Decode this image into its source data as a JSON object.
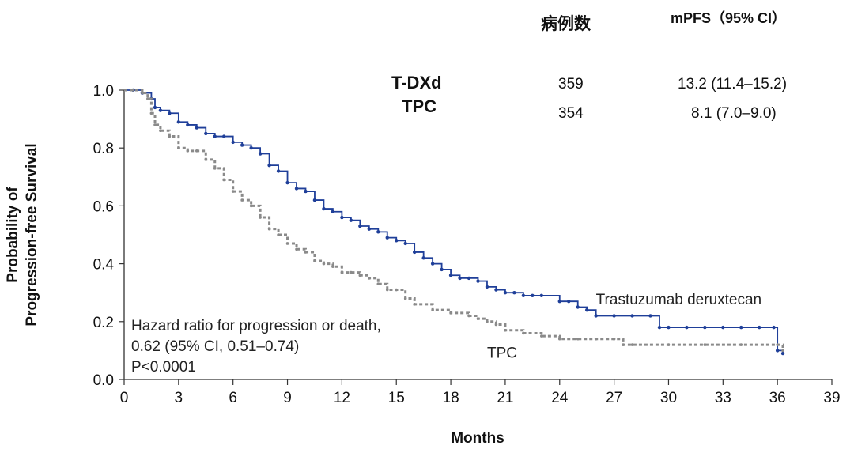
{
  "chart_data": {
    "type": "line",
    "title": "",
    "xlabel": "Months",
    "ylabel_line1": "Probability of",
    "ylabel_line2": "Progression-free Survival",
    "xlim": [
      0,
      39
    ],
    "ylim": [
      0,
      1.0
    ],
    "x_ticks": [
      "0",
      "3",
      "6",
      "9",
      "12",
      "15",
      "18",
      "21",
      "24",
      "27",
      "30",
      "33",
      "36",
      "39"
    ],
    "x_tick_values": [
      0,
      3,
      6,
      9,
      12,
      15,
      18,
      21,
      24,
      27,
      30,
      33,
      36,
      39
    ],
    "y_ticks": [
      "0.0",
      "0.2",
      "0.4",
      "0.6",
      "0.8",
      "1.0"
    ],
    "y_tick_values": [
      0,
      0.2,
      0.4,
      0.6,
      0.8,
      1.0
    ],
    "grid": false,
    "table": {
      "header_cases": "病例数",
      "header_mpfs": "mPFS（95% CI）",
      "rows": [
        {
          "arm": "T-DXd",
          "cases": "359",
          "mpfs": "13.2 (11.4–15.2)"
        },
        {
          "arm": "TPC",
          "cases": "354",
          "mpfs": "8.1 (7.0–9.0)"
        }
      ]
    },
    "annotation": {
      "line1": "Hazard ratio for progression or death,",
      "line2": "0.62 (95% CI, 0.51–0.74)",
      "line3": "P<0.0001"
    },
    "series": [
      {
        "name": "Trastuzumab deruxtecan",
        "color": "#1f3f99",
        "dash": false,
        "x": [
          0,
          0.5,
          1.0,
          1.5,
          1.7,
          2.0,
          2.5,
          3.0,
          3.5,
          4.0,
          4.5,
          5.0,
          5.5,
          6.0,
          6.5,
          7.0,
          7.5,
          8.0,
          8.5,
          9.0,
          9.5,
          10.0,
          10.5,
          11.0,
          11.5,
          12.0,
          12.5,
          13.0,
          13.5,
          14.0,
          14.5,
          15.0,
          15.5,
          16.0,
          16.5,
          17.0,
          17.5,
          18.0,
          18.5,
          19.0,
          19.5,
          20.0,
          20.5,
          21.0,
          21.5,
          22.0,
          22.5,
          23.0,
          24.0,
          24.5,
          25.0,
          25.5,
          26.0,
          27.0,
          28.0,
          29.0,
          29.5,
          30.0,
          31.0,
          32.0,
          33.0,
          34.0,
          35.0,
          35.8,
          36.0,
          36.3
        ],
        "y": [
          1.0,
          1.0,
          0.99,
          0.97,
          0.94,
          0.93,
          0.92,
          0.89,
          0.88,
          0.87,
          0.85,
          0.84,
          0.84,
          0.82,
          0.81,
          0.8,
          0.78,
          0.74,
          0.72,
          0.68,
          0.66,
          0.65,
          0.62,
          0.59,
          0.58,
          0.56,
          0.55,
          0.53,
          0.52,
          0.51,
          0.49,
          0.48,
          0.47,
          0.44,
          0.42,
          0.4,
          0.38,
          0.36,
          0.35,
          0.35,
          0.34,
          0.32,
          0.31,
          0.3,
          0.3,
          0.29,
          0.29,
          0.29,
          0.27,
          0.27,
          0.25,
          0.24,
          0.22,
          0.22,
          0.22,
          0.22,
          0.18,
          0.18,
          0.18,
          0.18,
          0.18,
          0.18,
          0.18,
          0.18,
          0.1,
          0.09
        ]
      },
      {
        "name": "TPC",
        "color": "#8a8a8a",
        "dash": true,
        "x": [
          0,
          0.5,
          1.0,
          1.3,
          1.5,
          1.7,
          2.0,
          2.5,
          3.0,
          3.5,
          4.0,
          4.5,
          5.0,
          5.5,
          6.0,
          6.5,
          7.0,
          7.5,
          8.0,
          8.5,
          9.0,
          9.5,
          10.0,
          10.5,
          11.0,
          11.5,
          12.0,
          12.5,
          13.0,
          13.5,
          14.0,
          14.5,
          15.0,
          15.5,
          16.0,
          17.0,
          18.0,
          19.0,
          19.5,
          20.0,
          20.5,
          21.0,
          22.0,
          23.0,
          24.0,
          25.0,
          26.0,
          27.0,
          27.5,
          28.0,
          30.0,
          32.0,
          34.0,
          36.0,
          36.3
        ],
        "y": [
          1.0,
          1.0,
          0.99,
          0.97,
          0.92,
          0.88,
          0.86,
          0.84,
          0.8,
          0.79,
          0.79,
          0.76,
          0.73,
          0.69,
          0.65,
          0.62,
          0.6,
          0.56,
          0.52,
          0.5,
          0.47,
          0.45,
          0.44,
          0.41,
          0.4,
          0.39,
          0.37,
          0.37,
          0.36,
          0.35,
          0.33,
          0.31,
          0.31,
          0.28,
          0.26,
          0.24,
          0.23,
          0.22,
          0.21,
          0.2,
          0.19,
          0.17,
          0.16,
          0.15,
          0.14,
          0.14,
          0.14,
          0.14,
          0.12,
          0.12,
          0.12,
          0.12,
          0.12,
          0.12,
          0.1
        ]
      }
    ],
    "series_labels": [
      {
        "text": "Trastuzumab deruxtecan",
        "at_x": 26.0,
        "at_y": 0.26
      },
      {
        "text": "TPC",
        "at_x": 20.0,
        "at_y": 0.075
      }
    ]
  }
}
